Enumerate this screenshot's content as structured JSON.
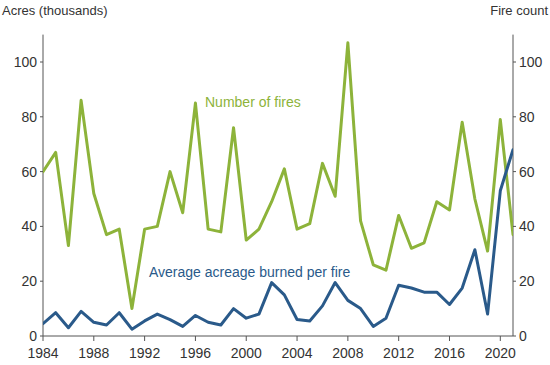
{
  "chart_data": {
    "type": "line",
    "y_label": "Acres (thousands)",
    "y2_label": "Fire count",
    "x": [
      1984,
      1985,
      1986,
      1987,
      1988,
      1989,
      1990,
      1991,
      1992,
      1993,
      1994,
      1995,
      1996,
      1997,
      1998,
      1999,
      2000,
      2001,
      2002,
      2003,
      2004,
      2005,
      2006,
      2007,
      2008,
      2009,
      2010,
      2011,
      2012,
      2013,
      2014,
      2015,
      2016,
      2017,
      2018,
      2019,
      2020,
      2021
    ],
    "series": [
      {
        "name": "Number of fires",
        "color": "#8db33a",
        "axis": "y2",
        "values": [
          60,
          67,
          33,
          86,
          52,
          37,
          39,
          10,
          39,
          40,
          60,
          45,
          85,
          39,
          38,
          76,
          35,
          39,
          49,
          61,
          39,
          41,
          63,
          51,
          107,
          42,
          26,
          24,
          44,
          32,
          34,
          49,
          46,
          78,
          50,
          31,
          79,
          37
        ]
      },
      {
        "name": "Average acreage burned per fire",
        "color": "#2a5a8a",
        "axis": "y",
        "values": [
          4.5,
          8.5,
          3,
          9,
          5,
          4,
          8.5,
          2.5,
          5.5,
          8,
          6,
          3.5,
          7.5,
          5,
          4,
          10,
          6.5,
          8,
          19.5,
          15,
          6,
          5.5,
          11,
          19.5,
          13,
          10,
          3.5,
          6.5,
          18.5,
          17.5,
          16,
          16,
          11.5,
          17.5,
          31.5,
          8,
          53,
          68
        ]
      }
    ],
    "xlim": [
      1984,
      2021
    ],
    "xticks": [
      1984,
      1988,
      1992,
      1996,
      2000,
      2004,
      2008,
      2012,
      2016,
      2020
    ],
    "ylim": [
      0,
      110
    ],
    "yticks": [
      0,
      20,
      40,
      60,
      80,
      100
    ],
    "y2lim": [
      0,
      110
    ],
    "y2ticks": [
      0,
      20,
      40,
      60,
      80,
      100
    ],
    "grid": false
  }
}
